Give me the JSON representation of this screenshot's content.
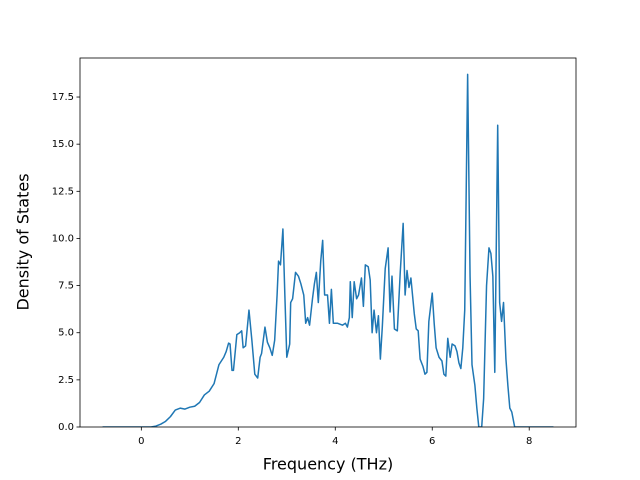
{
  "chart_data": {
    "type": "line",
    "xlabel": "Frequency (THz)",
    "ylabel": "Density of States",
    "xlim": [
      -1.265,
      8.965
    ],
    "ylim": [
      0,
      19.57
    ],
    "xticks": [
      0,
      2,
      4,
      6,
      8
    ],
    "yticks": [
      {
        "value": 0,
        "label": "0.0"
      },
      {
        "value": 2.5,
        "label": "2.5"
      },
      {
        "value": 5,
        "label": "5.0"
      },
      {
        "value": 7.5,
        "label": "7.5"
      },
      {
        "value": 10,
        "label": "10.0"
      },
      {
        "value": 12.5,
        "label": "12.5"
      },
      {
        "value": 15,
        "label": "15.0"
      },
      {
        "value": 17.5,
        "label": "17.5"
      }
    ],
    "grid": false,
    "series": [
      {
        "color": "#1f77b4",
        "x": [
          -0.8,
          0,
          0.2,
          0.3,
          0.4,
          0.5,
          0.6,
          0.7,
          0.8,
          0.9,
          1.0,
          1.1,
          1.2,
          1.3,
          1.4,
          1.5,
          1.6,
          1.7,
          1.75,
          1.8,
          1.83,
          1.87,
          1.9,
          1.97,
          2.03,
          2.07,
          2.1,
          2.15,
          2.22,
          2.28,
          2.34,
          2.4,
          2.45,
          2.48,
          2.55,
          2.6,
          2.65,
          2.7,
          2.75,
          2.8,
          2.83,
          2.87,
          2.92,
          2.96,
          3.0,
          3.06,
          3.08,
          3.12,
          3.18,
          3.24,
          3.29,
          3.35,
          3.39,
          3.43,
          3.47,
          3.53,
          3.57,
          3.61,
          3.65,
          3.7,
          3.74,
          3.78,
          3.84,
          3.88,
          3.92,
          3.96,
          4.05,
          4.15,
          4.21,
          4.25,
          4.29,
          4.31,
          4.35,
          4.39,
          4.44,
          4.48,
          4.54,
          4.58,
          4.62,
          4.68,
          4.72,
          4.76,
          4.8,
          4.85,
          4.89,
          4.93,
          4.97,
          5.03,
          5.09,
          5.13,
          5.17,
          5.22,
          5.28,
          5.34,
          5.4,
          5.44,
          5.48,
          5.52,
          5.56,
          5.63,
          5.67,
          5.71,
          5.75,
          5.81,
          5.85,
          5.89,
          5.93,
          6.0,
          6.04,
          6.08,
          6.14,
          6.2,
          6.24,
          6.28,
          6.32,
          6.37,
          6.41,
          6.47,
          6.51,
          6.55,
          6.59,
          6.63,
          6.67,
          6.73,
          6.78,
          6.82,
          6.88,
          6.92,
          6.96,
          7.02,
          7.06,
          7.12,
          7.17,
          7.21,
          7.25,
          7.29,
          7.35,
          7.39,
          7.43,
          7.47,
          7.52,
          7.56,
          7.6,
          7.64,
          7.7,
          8.0,
          8.5
        ],
        "values": [
          0,
          0,
          0,
          0.05,
          0.15,
          0.3,
          0.55,
          0.9,
          1.0,
          0.95,
          1.05,
          1.1,
          1.3,
          1.7,
          1.9,
          2.3,
          3.3,
          3.7,
          4.0,
          4.45,
          4.4,
          3.0,
          3.0,
          4.9,
          5.0,
          5.1,
          4.2,
          4.3,
          6.2,
          4.6,
          2.8,
          2.6,
          3.7,
          3.9,
          5.3,
          4.5,
          4.2,
          3.8,
          4.6,
          7.0,
          8.8,
          8.6,
          10.5,
          7.0,
          3.7,
          4.4,
          6.6,
          6.8,
          8.2,
          8.0,
          7.6,
          7.0,
          5.5,
          5.8,
          5.4,
          6.8,
          7.6,
          8.2,
          6.6,
          8.8,
          9.9,
          7.0,
          7.0,
          5.5,
          7.3,
          5.5,
          5.5,
          5.4,
          5.5,
          5.3,
          5.8,
          7.7,
          5.8,
          7.7,
          6.8,
          7.0,
          7.9,
          6.4,
          8.6,
          8.5,
          7.8,
          5.0,
          6.2,
          5.0,
          5.9,
          3.6,
          5.3,
          8.4,
          9.5,
          6.1,
          8.0,
          5.2,
          5.1,
          8.2,
          10.8,
          7.0,
          8.3,
          7.4,
          7.9,
          6.0,
          5.2,
          5.1,
          3.6,
          3.2,
          2.8,
          2.9,
          5.6,
          7.1,
          5.5,
          4.2,
          3.7,
          3.5,
          2.8,
          2.7,
          4.7,
          3.7,
          4.4,
          4.3,
          4.0,
          3.4,
          3.1,
          4.2,
          6.2,
          18.7,
          8.0,
          3.3,
          2.2,
          1.0,
          0,
          0,
          1.5,
          7.5,
          9.5,
          9.2,
          8.0,
          2.9,
          16.0,
          6.6,
          5.6,
          6.6,
          3.6,
          2.2,
          1.0,
          0.8,
          0,
          0,
          0
        ]
      }
    ]
  }
}
